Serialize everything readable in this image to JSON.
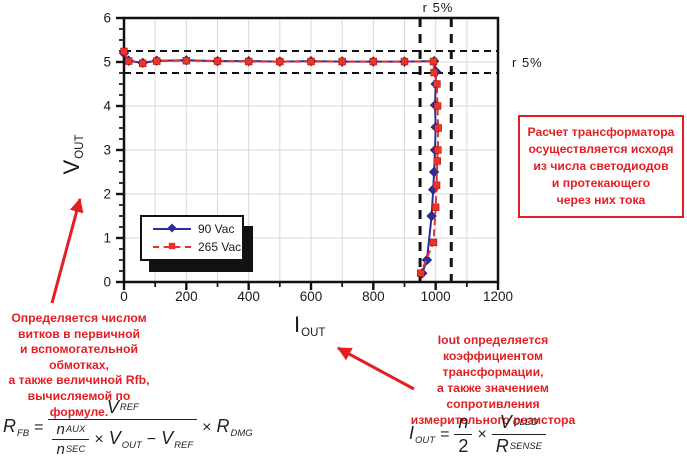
{
  "figure": {
    "tolerance_top": "r 5%",
    "tolerance_right": "r 5%",
    "accent_red": "#e31e24"
  },
  "chart_data": {
    "type": "line",
    "title": "",
    "xlabel_base": "I",
    "xlabel_sub": "OUT",
    "ylabel_base": "V",
    "ylabel_sub": "OUT",
    "xlim": [
      0,
      1200
    ],
    "ylim": [
      0,
      6
    ],
    "x_ticks": [
      0,
      200,
      400,
      600,
      800,
      1000,
      1200
    ],
    "x_minor_ticks": [
      100,
      300,
      500,
      700,
      900,
      1100
    ],
    "y_ticks": [
      0,
      1,
      2,
      3,
      4,
      5,
      6
    ],
    "y_minor_step": 0.25,
    "grid": "on",
    "legend_position": "lower-left",
    "tolerance_lines": {
      "horizontal_y": [
        4.75,
        5.25
      ],
      "vertical_x": [
        950,
        1050
      ]
    },
    "series": [
      {
        "name": "90 Vac",
        "color": "#2b2f9e",
        "marker": "diamond",
        "line": "solid",
        "points": [
          [
            0,
            5.2
          ],
          [
            15,
            5.03
          ],
          [
            60,
            4.98
          ],
          [
            105,
            5.03
          ],
          [
            200,
            5.04
          ],
          [
            300,
            5.02
          ],
          [
            400,
            5.02
          ],
          [
            500,
            5.01
          ],
          [
            600,
            5.02
          ],
          [
            700,
            5.01
          ],
          [
            800,
            5.01
          ],
          [
            900,
            5.01
          ],
          [
            995,
            5.02
          ],
          [
            1001,
            4.78
          ],
          [
            1000,
            4.5
          ],
          [
            998,
            4.02
          ],
          [
            1000,
            3.52
          ],
          [
            998,
            3.0
          ],
          [
            995,
            2.5
          ],
          [
            992,
            2.1
          ],
          [
            987,
            1.5
          ],
          [
            972,
            0.5
          ],
          [
            957,
            0.2
          ]
        ]
      },
      {
        "name": "265 Vac",
        "color": "#e8342b",
        "marker": "square",
        "line": "dashed",
        "points": [
          [
            0,
            5.24
          ],
          [
            15,
            5.02
          ],
          [
            60,
            4.97
          ],
          [
            105,
            5.02
          ],
          [
            200,
            5.03
          ],
          [
            300,
            5.02
          ],
          [
            400,
            5.01
          ],
          [
            500,
            5.01
          ],
          [
            600,
            5.01
          ],
          [
            700,
            5.01
          ],
          [
            800,
            5.01
          ],
          [
            900,
            5.01
          ],
          [
            993,
            5.01
          ],
          [
            995,
            4.76
          ],
          [
            1004,
            4.5
          ],
          [
            1006,
            4.0
          ],
          [
            1008,
            3.5
          ],
          [
            1007,
            3.0
          ],
          [
            1005,
            2.75
          ],
          [
            1003,
            2.2
          ],
          [
            1000,
            1.7
          ],
          [
            993,
            0.9
          ],
          [
            952,
            0.2
          ]
        ]
      }
    ]
  },
  "annotations": {
    "left_note": "Определяется числом\nвитков в первичной\nи вспомогательной обмотках,\nа также величиной Rfb,\nвычисляемой по формуле.",
    "right_note": "Iout определяется\nкоэффициентом трансформации,\nа также значением\nсопротивления\nизмерительного резистора",
    "box_note": "Расчет трансформатора\nосуществляется исходя\nиз числа светодиодов\nи протекающего\nчерез них тока"
  },
  "formulas": {
    "rfb": {
      "lhs_base": "R",
      "lhs_sub": "FB",
      "equals": "=",
      "num_base": "V",
      "num_sub": "REF",
      "nested_num_base": "n",
      "nested_num_sub": "AUX",
      "nested_den_base": "n",
      "nested_den_sub": "SEC",
      "den_times": "×",
      "den_v_base": "V",
      "den_v_sub": "OUT",
      "den_minus": "−",
      "den_vref_base": "V",
      "den_vref_sub": "REF",
      "times": "×",
      "rhs_base": "R",
      "rhs_sub": "DMG"
    },
    "iout": {
      "lhs_base": "I",
      "lhs_sub": "OUT",
      "equals": "=",
      "f1_num": "n",
      "f1_den": "2",
      "times": "×",
      "f2_num_base": "V",
      "f2_num_sub": "CLED",
      "f2_den_base": "R",
      "f2_den_sub": "SENSE"
    }
  }
}
